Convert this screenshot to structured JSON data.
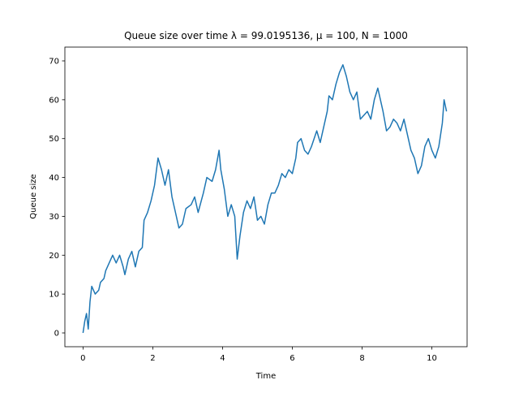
{
  "chart_data": {
    "type": "line",
    "title": "Queue size over time λ = 99.0195136, μ = 100, N = 1000",
    "xlabel": "Time",
    "ylabel": "Queue size",
    "color": "#1f77b4",
    "grid": false,
    "x": [
      0,
      0.05,
      0.1,
      0.15,
      0.2,
      0.25,
      0.35,
      0.45,
      0.5,
      0.6,
      0.65,
      0.75,
      0.85,
      0.95,
      1.05,
      1.15,
      1.2,
      1.3,
      1.4,
      1.5,
      1.6,
      1.7,
      1.75,
      1.85,
      1.95,
      2.05,
      2.15,
      2.25,
      2.35,
      2.45,
      2.55,
      2.65,
      2.75,
      2.85,
      2.95,
      3.1,
      3.2,
      3.3,
      3.45,
      3.55,
      3.7,
      3.8,
      3.9,
      3.95,
      4.05,
      4.15,
      4.25,
      4.35,
      4.42,
      4.5,
      4.6,
      4.7,
      4.8,
      4.9,
      5.0,
      5.1,
      5.2,
      5.3,
      5.4,
      5.5,
      5.6,
      5.7,
      5.8,
      5.9,
      6.0,
      6.1,
      6.15,
      6.25,
      6.35,
      6.45,
      6.55,
      6.7,
      6.8,
      6.9,
      7.0,
      7.05,
      7.15,
      7.25,
      7.35,
      7.45,
      7.55,
      7.65,
      7.75,
      7.85,
      7.95,
      8.05,
      8.15,
      8.25,
      8.35,
      8.45,
      8.5,
      8.6,
      8.7,
      8.8,
      8.9,
      9.0,
      9.1,
      9.2,
      9.3,
      9.4,
      9.5,
      9.6,
      9.7,
      9.8,
      9.9,
      10.0,
      10.1,
      10.2,
      10.3,
      10.35,
      10.42
    ],
    "values": [
      0,
      3,
      5,
      1,
      8,
      12,
      10,
      11,
      13,
      14,
      16,
      18,
      20,
      18,
      20,
      17,
      15,
      19,
      21,
      17,
      21,
      22,
      29,
      31,
      34,
      38,
      45,
      42,
      38,
      42,
      35,
      31,
      27,
      28,
      32,
      33,
      35,
      31,
      36,
      40,
      39,
      42,
      47,
      42,
      37,
      30,
      33,
      30,
      19,
      25,
      31,
      34,
      32,
      35,
      29,
      30,
      28,
      33,
      36,
      36,
      38,
      41,
      40,
      42,
      41,
      45,
      49,
      50,
      47,
      46,
      48,
      52,
      49,
      53,
      57,
      61,
      60,
      64,
      67,
      69,
      66,
      62,
      60,
      62,
      55,
      56,
      57,
      55,
      60,
      63,
      61,
      57,
      52,
      53,
      55,
      54,
      52,
      55,
      51,
      47,
      45,
      41,
      43,
      48,
      50,
      47,
      45,
      48,
      54,
      60,
      57
    ],
    "xlim": [
      -0.52,
      11.01
    ],
    "ylim": [
      -3.55,
      73.55
    ],
    "xticks": [
      0,
      2,
      4,
      6,
      8,
      10
    ],
    "yticks": [
      0,
      10,
      20,
      30,
      40,
      50,
      60,
      70
    ]
  }
}
